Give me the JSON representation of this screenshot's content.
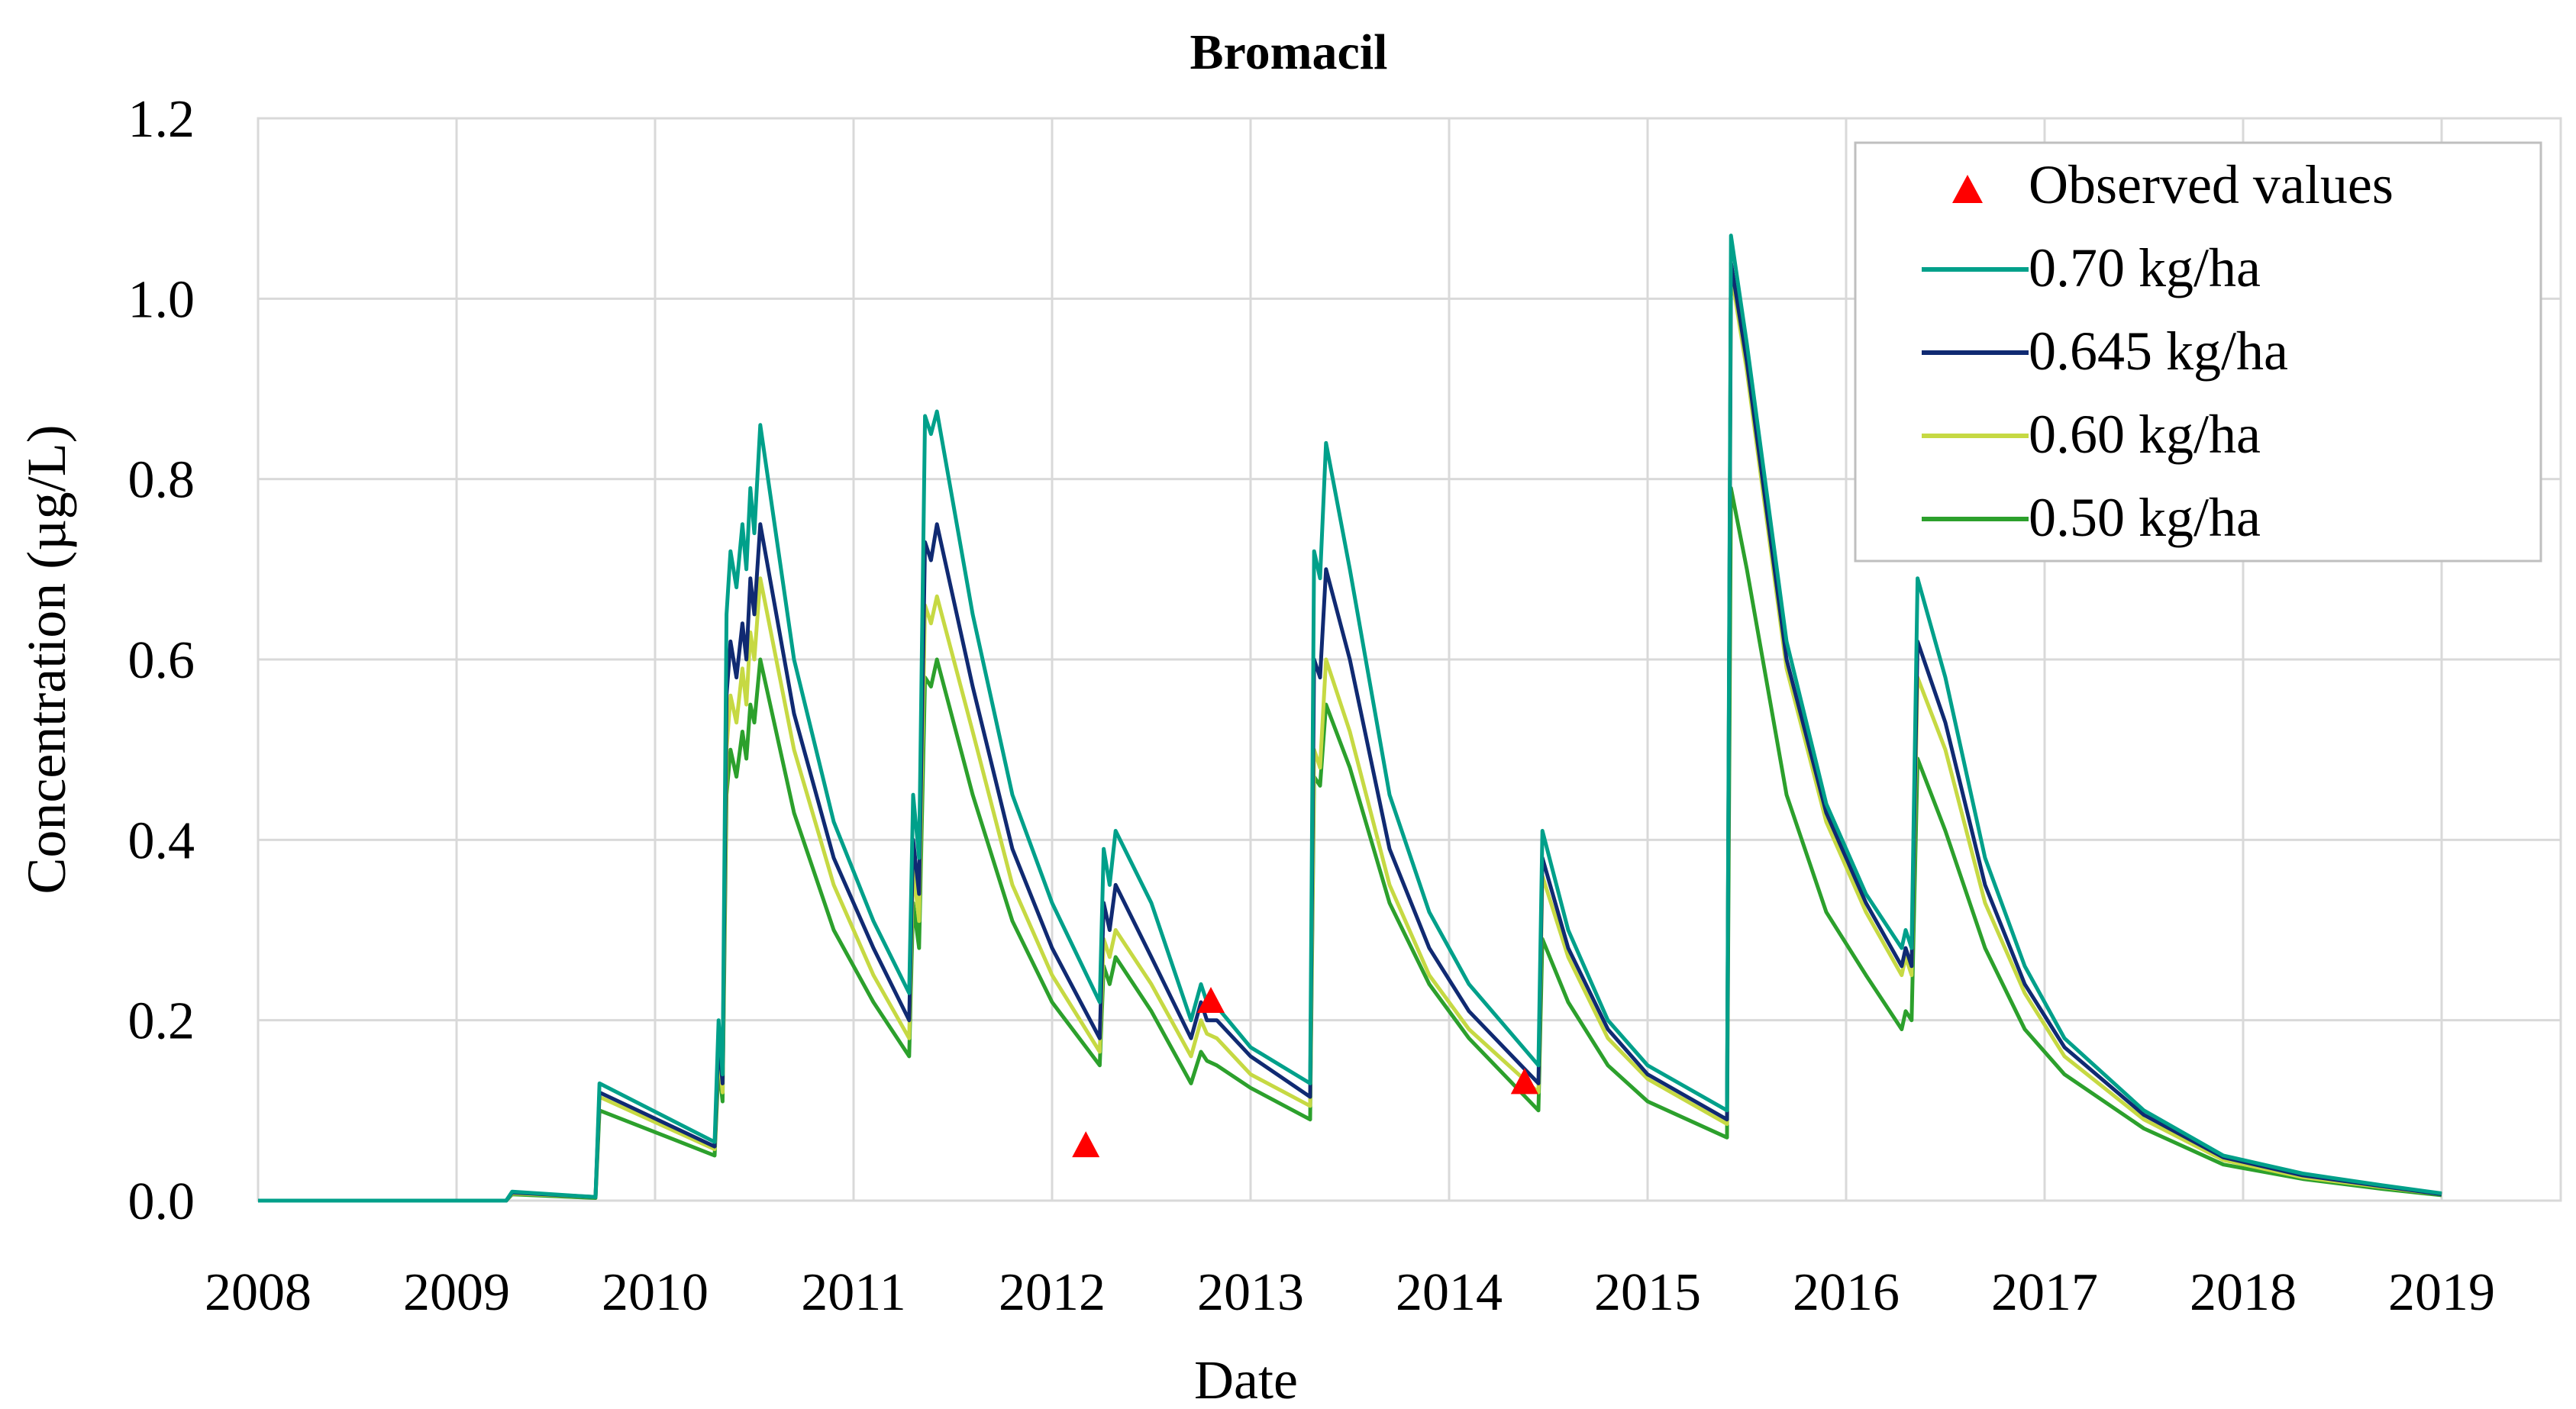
{
  "chart_data": {
    "type": "line",
    "title": "Bromacil",
    "xlabel": "Date",
    "ylabel": "Concentration (µg/L)",
    "xlim": [
      2008,
      2019.6
    ],
    "ylim": [
      0,
      1.2
    ],
    "x_ticks": [
      2008,
      2009,
      2010,
      2011,
      2012,
      2013,
      2014,
      2015,
      2016,
      2017,
      2018,
      2019
    ],
    "x_tick_labels": [
      "2008",
      "2009",
      "2010",
      "2011",
      "2012",
      "2013",
      "2014",
      "2015",
      "2016",
      "2017",
      "2018",
      "2019"
    ],
    "y_ticks": [
      0,
      0.2,
      0.4,
      0.6,
      0.8,
      1.0,
      1.2
    ],
    "y_tick_labels": [
      "0.0",
      "0.2",
      "0.4",
      "0.6",
      "0.8",
      "1.0",
      "1.2"
    ],
    "grid": true,
    "legend_position": "top-right",
    "observed": {
      "name": "Observed values",
      "color": "#ff0000",
      "points": [
        [
          2012.17,
          0.06
        ],
        [
          2012.8,
          0.22
        ],
        [
          2014.38,
          0.13
        ]
      ]
    },
    "series": [
      {
        "name": "0.70 kg/ha",
        "color": "#00a08a",
        "points": [
          [
            2008,
            0
          ],
          [
            2009.25,
            0
          ],
          [
            2009.28,
            0.01
          ],
          [
            2009.7,
            0.004
          ],
          [
            2009.72,
            0.13
          ],
          [
            2010.3,
            0.065
          ],
          [
            2010.32,
            0.2
          ],
          [
            2010.34,
            0.14
          ],
          [
            2010.36,
            0.65
          ],
          [
            2010.38,
            0.72
          ],
          [
            2010.41,
            0.68
          ],
          [
            2010.44,
            0.75
          ],
          [
            2010.46,
            0.7
          ],
          [
            2010.48,
            0.79
          ],
          [
            2010.5,
            0.74
          ],
          [
            2010.53,
            0.86
          ],
          [
            2010.7,
            0.6
          ],
          [
            2010.9,
            0.42
          ],
          [
            2011.1,
            0.31
          ],
          [
            2011.28,
            0.23
          ],
          [
            2011.3,
            0.45
          ],
          [
            2011.33,
            0.38
          ],
          [
            2011.36,
            0.87
          ],
          [
            2011.39,
            0.85
          ],
          [
            2011.42,
            0.875
          ],
          [
            2011.6,
            0.65
          ],
          [
            2011.8,
            0.45
          ],
          [
            2012.0,
            0.33
          ],
          [
            2012.24,
            0.22
          ],
          [
            2012.26,
            0.39
          ],
          [
            2012.29,
            0.35
          ],
          [
            2012.32,
            0.41
          ],
          [
            2012.5,
            0.33
          ],
          [
            2012.7,
            0.2
          ],
          [
            2012.75,
            0.24
          ],
          [
            2012.78,
            0.22
          ],
          [
            2012.83,
            0.215
          ],
          [
            2013.0,
            0.17
          ],
          [
            2013.3,
            0.13
          ],
          [
            2013.32,
            0.72
          ],
          [
            2013.35,
            0.69
          ],
          [
            2013.38,
            0.84
          ],
          [
            2013.5,
            0.7
          ],
          [
            2013.7,
            0.45
          ],
          [
            2013.9,
            0.32
          ],
          [
            2014.1,
            0.24
          ],
          [
            2014.45,
            0.15
          ],
          [
            2014.47,
            0.41
          ],
          [
            2014.6,
            0.3
          ],
          [
            2014.8,
            0.2
          ],
          [
            2015.0,
            0.15
          ],
          [
            2015.4,
            0.1
          ],
          [
            2015.42,
            1.07
          ],
          [
            2015.5,
            0.95
          ],
          [
            2015.7,
            0.62
          ],
          [
            2015.9,
            0.44
          ],
          [
            2016.1,
            0.34
          ],
          [
            2016.28,
            0.28
          ],
          [
            2016.3,
            0.3
          ],
          [
            2016.33,
            0.28
          ],
          [
            2016.36,
            0.69
          ],
          [
            2016.5,
            0.58
          ],
          [
            2016.7,
            0.38
          ],
          [
            2016.9,
            0.26
          ],
          [
            2017.1,
            0.18
          ],
          [
            2017.5,
            0.1
          ],
          [
            2017.9,
            0.05
          ],
          [
            2018.3,
            0.03
          ],
          [
            2018.7,
            0.017
          ],
          [
            2019.0,
            0.008
          ]
        ]
      },
      {
        "name": "0.645 kg/ha",
        "color": "#102a72",
        "points": [
          [
            2008,
            0
          ],
          [
            2009.25,
            0
          ],
          [
            2009.28,
            0.009
          ],
          [
            2009.7,
            0.004
          ],
          [
            2009.72,
            0.12
          ],
          [
            2010.3,
            0.06
          ],
          [
            2010.32,
            0.18
          ],
          [
            2010.34,
            0.13
          ],
          [
            2010.36,
            0.56
          ],
          [
            2010.38,
            0.62
          ],
          [
            2010.41,
            0.58
          ],
          [
            2010.44,
            0.64
          ],
          [
            2010.46,
            0.6
          ],
          [
            2010.48,
            0.69
          ],
          [
            2010.5,
            0.65
          ],
          [
            2010.53,
            0.75
          ],
          [
            2010.7,
            0.54
          ],
          [
            2010.9,
            0.38
          ],
          [
            2011.1,
            0.28
          ],
          [
            2011.28,
            0.2
          ],
          [
            2011.3,
            0.4
          ],
          [
            2011.33,
            0.34
          ],
          [
            2011.36,
            0.73
          ],
          [
            2011.39,
            0.71
          ],
          [
            2011.42,
            0.75
          ],
          [
            2011.6,
            0.57
          ],
          [
            2011.8,
            0.39
          ],
          [
            2012.0,
            0.28
          ],
          [
            2012.24,
            0.18
          ],
          [
            2012.26,
            0.33
          ],
          [
            2012.29,
            0.3
          ],
          [
            2012.32,
            0.35
          ],
          [
            2012.5,
            0.27
          ],
          [
            2012.7,
            0.18
          ],
          [
            2012.75,
            0.22
          ],
          [
            2012.78,
            0.2
          ],
          [
            2012.83,
            0.2
          ],
          [
            2013.0,
            0.16
          ],
          [
            2013.3,
            0.115
          ],
          [
            2013.32,
            0.6
          ],
          [
            2013.35,
            0.58
          ],
          [
            2013.38,
            0.7
          ],
          [
            2013.5,
            0.6
          ],
          [
            2013.7,
            0.39
          ],
          [
            2013.9,
            0.28
          ],
          [
            2014.1,
            0.21
          ],
          [
            2014.45,
            0.13
          ],
          [
            2014.47,
            0.38
          ],
          [
            2014.6,
            0.28
          ],
          [
            2014.8,
            0.19
          ],
          [
            2015.0,
            0.14
          ],
          [
            2015.4,
            0.09
          ],
          [
            2015.42,
            1.04
          ],
          [
            2015.5,
            0.93
          ],
          [
            2015.7,
            0.6
          ],
          [
            2015.9,
            0.43
          ],
          [
            2016.1,
            0.33
          ],
          [
            2016.28,
            0.26
          ],
          [
            2016.3,
            0.28
          ],
          [
            2016.33,
            0.26
          ],
          [
            2016.36,
            0.62
          ],
          [
            2016.5,
            0.53
          ],
          [
            2016.7,
            0.35
          ],
          [
            2016.9,
            0.24
          ],
          [
            2017.1,
            0.17
          ],
          [
            2017.5,
            0.095
          ],
          [
            2017.9,
            0.048
          ],
          [
            2018.3,
            0.028
          ],
          [
            2018.7,
            0.016
          ],
          [
            2019.0,
            0.007
          ]
        ]
      },
      {
        "name": "0.60 kg/ha",
        "color": "#c6d943",
        "points": [
          [
            2008,
            0
          ],
          [
            2009.25,
            0
          ],
          [
            2009.28,
            0.008
          ],
          [
            2009.7,
            0.004
          ],
          [
            2009.72,
            0.115
          ],
          [
            2010.3,
            0.057
          ],
          [
            2010.32,
            0.17
          ],
          [
            2010.34,
            0.12
          ],
          [
            2010.36,
            0.5
          ],
          [
            2010.38,
            0.56
          ],
          [
            2010.41,
            0.53
          ],
          [
            2010.44,
            0.59
          ],
          [
            2010.46,
            0.55
          ],
          [
            2010.48,
            0.63
          ],
          [
            2010.5,
            0.6
          ],
          [
            2010.53,
            0.69
          ],
          [
            2010.7,
            0.5
          ],
          [
            2010.9,
            0.35
          ],
          [
            2011.1,
            0.25
          ],
          [
            2011.28,
            0.18
          ],
          [
            2011.3,
            0.37
          ],
          [
            2011.33,
            0.31
          ],
          [
            2011.36,
            0.66
          ],
          [
            2011.39,
            0.64
          ],
          [
            2011.42,
            0.67
          ],
          [
            2011.6,
            0.52
          ],
          [
            2011.8,
            0.35
          ],
          [
            2012.0,
            0.25
          ],
          [
            2012.24,
            0.165
          ],
          [
            2012.26,
            0.29
          ],
          [
            2012.29,
            0.27
          ],
          [
            2012.32,
            0.3
          ],
          [
            2012.5,
            0.24
          ],
          [
            2012.7,
            0.16
          ],
          [
            2012.75,
            0.2
          ],
          [
            2012.78,
            0.185
          ],
          [
            2012.83,
            0.18
          ],
          [
            2013.0,
            0.14
          ],
          [
            2013.3,
            0.105
          ],
          [
            2013.32,
            0.5
          ],
          [
            2013.35,
            0.48
          ],
          [
            2013.38,
            0.6
          ],
          [
            2013.5,
            0.52
          ],
          [
            2013.7,
            0.35
          ],
          [
            2013.9,
            0.25
          ],
          [
            2014.1,
            0.19
          ],
          [
            2014.45,
            0.12
          ],
          [
            2014.47,
            0.36
          ],
          [
            2014.6,
            0.27
          ],
          [
            2014.8,
            0.18
          ],
          [
            2015.0,
            0.135
          ],
          [
            2015.4,
            0.085
          ],
          [
            2015.42,
            1.03
          ],
          [
            2015.5,
            0.92
          ],
          [
            2015.7,
            0.59
          ],
          [
            2015.9,
            0.42
          ],
          [
            2016.1,
            0.32
          ],
          [
            2016.28,
            0.25
          ],
          [
            2016.3,
            0.27
          ],
          [
            2016.33,
            0.25
          ],
          [
            2016.36,
            0.58
          ],
          [
            2016.5,
            0.5
          ],
          [
            2016.7,
            0.33
          ],
          [
            2016.9,
            0.23
          ],
          [
            2017.1,
            0.16
          ],
          [
            2017.5,
            0.09
          ],
          [
            2017.9,
            0.045
          ],
          [
            2018.3,
            0.026
          ],
          [
            2018.7,
            0.015
          ],
          [
            2019.0,
            0.007
          ]
        ]
      },
      {
        "name": "0.50 kg/ha",
        "color": "#2ca02c",
        "points": [
          [
            2008,
            0
          ],
          [
            2009.25,
            0
          ],
          [
            2009.28,
            0.007
          ],
          [
            2009.7,
            0.003
          ],
          [
            2009.72,
            0.1
          ],
          [
            2010.3,
            0.05
          ],
          [
            2010.32,
            0.15
          ],
          [
            2010.34,
            0.11
          ],
          [
            2010.36,
            0.45
          ],
          [
            2010.38,
            0.5
          ],
          [
            2010.41,
            0.47
          ],
          [
            2010.44,
            0.52
          ],
          [
            2010.46,
            0.49
          ],
          [
            2010.48,
            0.55
          ],
          [
            2010.5,
            0.53
          ],
          [
            2010.53,
            0.6
          ],
          [
            2010.7,
            0.43
          ],
          [
            2010.9,
            0.3
          ],
          [
            2011.1,
            0.22
          ],
          [
            2011.28,
            0.16
          ],
          [
            2011.3,
            0.33
          ],
          [
            2011.33,
            0.28
          ],
          [
            2011.36,
            0.58
          ],
          [
            2011.39,
            0.57
          ],
          [
            2011.42,
            0.6
          ],
          [
            2011.6,
            0.45
          ],
          [
            2011.8,
            0.31
          ],
          [
            2012.0,
            0.22
          ],
          [
            2012.24,
            0.15
          ],
          [
            2012.26,
            0.26
          ],
          [
            2012.29,
            0.24
          ],
          [
            2012.32,
            0.27
          ],
          [
            2012.5,
            0.21
          ],
          [
            2012.7,
            0.13
          ],
          [
            2012.75,
            0.165
          ],
          [
            2012.78,
            0.155
          ],
          [
            2012.83,
            0.15
          ],
          [
            2013.0,
            0.125
          ],
          [
            2013.3,
            0.09
          ],
          [
            2013.32,
            0.47
          ],
          [
            2013.35,
            0.46
          ],
          [
            2013.38,
            0.55
          ],
          [
            2013.5,
            0.48
          ],
          [
            2013.7,
            0.33
          ],
          [
            2013.9,
            0.24
          ],
          [
            2014.1,
            0.18
          ],
          [
            2014.45,
            0.1
          ],
          [
            2014.47,
            0.29
          ],
          [
            2014.6,
            0.22
          ],
          [
            2014.8,
            0.15
          ],
          [
            2015.0,
            0.11
          ],
          [
            2015.4,
            0.07
          ],
          [
            2015.42,
            0.79
          ],
          [
            2015.5,
            0.7
          ],
          [
            2015.7,
            0.45
          ],
          [
            2015.9,
            0.32
          ],
          [
            2016.1,
            0.25
          ],
          [
            2016.28,
            0.19
          ],
          [
            2016.3,
            0.21
          ],
          [
            2016.33,
            0.2
          ],
          [
            2016.36,
            0.49
          ],
          [
            2016.5,
            0.41
          ],
          [
            2016.7,
            0.28
          ],
          [
            2016.9,
            0.19
          ],
          [
            2017.1,
            0.14
          ],
          [
            2017.5,
            0.08
          ],
          [
            2017.9,
            0.04
          ],
          [
            2018.3,
            0.024
          ],
          [
            2018.7,
            0.013
          ],
          [
            2019.0,
            0.006
          ]
        ]
      }
    ]
  }
}
